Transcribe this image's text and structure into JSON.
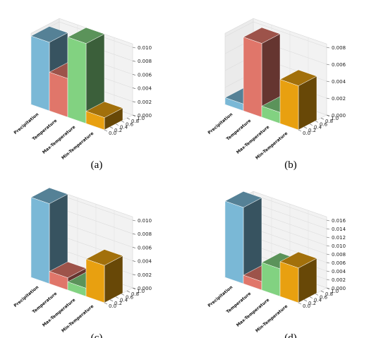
{
  "figure": {
    "categories": [
      "Precipitation",
      "Temperature",
      "Max-Temperature",
      "Min-Temperature"
    ],
    "colors": [
      "#7ab8d6",
      "#e0766a",
      "#82d281",
      "#e8a010"
    ]
  },
  "chart_data": [
    {
      "type": "bar",
      "caption": "(a)",
      "categories": [
        "Precipitation",
        "Temperature",
        "Max-Temperature",
        "Min-Temperature"
      ],
      "values": [
        0.0101,
        0.0057,
        0.0118,
        0.0018
      ],
      "zlim": [
        0,
        0.01
      ],
      "z_ticks": [
        "0.000",
        "0.002",
        "0.004",
        "0.006",
        "0.008",
        "0.010"
      ],
      "y_ticks": [
        "0.0",
        "0.2",
        "0.4",
        "0.6",
        "0.8",
        "1.0"
      ]
    },
    {
      "type": "bar",
      "caption": "(b)",
      "categories": [
        "Precipitation",
        "Temperature",
        "Max-Temperature",
        "Min-Temperature"
      ],
      "values": [
        0.0008,
        0.0087,
        0.0013,
        0.0052
      ],
      "zlim": [
        0,
        0.008
      ],
      "z_ticks": [
        "0.000",
        "0.002",
        "0.004",
        "0.006",
        "0.008"
      ],
      "y_ticks": [
        "0.0",
        "0.2",
        "0.4",
        "0.6",
        "0.8",
        "1.0"
      ]
    },
    {
      "type": "bar",
      "caption": "(c)",
      "categories": [
        "Precipitation",
        "Temperature",
        "Max-Temperature",
        "Min-Temperature"
      ],
      "values": [
        0.0118,
        0.0018,
        0.0012,
        0.0055
      ],
      "zlim": [
        0,
        0.01
      ],
      "z_ticks": [
        "0.000",
        "0.002",
        "0.004",
        "0.006",
        "0.008",
        "0.010"
      ],
      "y_ticks": [
        "0.0",
        "0.2",
        "0.4",
        "0.6",
        "0.8",
        "1.0"
      ]
    },
    {
      "type": "bar",
      "caption": "(d)",
      "categories": [
        "Precipitation",
        "Temperature",
        "Max-Temperature",
        "Min-Temperature"
      ],
      "values": [
        0.018,
        0.002,
        0.0065,
        0.0082
      ],
      "zlim": [
        0,
        0.016
      ],
      "z_ticks": [
        "0.000",
        "0.002",
        "0.004",
        "0.006",
        "0.008",
        "0.010",
        "0.012",
        "0.014",
        "0.016"
      ],
      "y_ticks": [
        "0.0",
        "0.2",
        "0.4",
        "0.6",
        "0.8",
        "1.0"
      ]
    }
  ]
}
